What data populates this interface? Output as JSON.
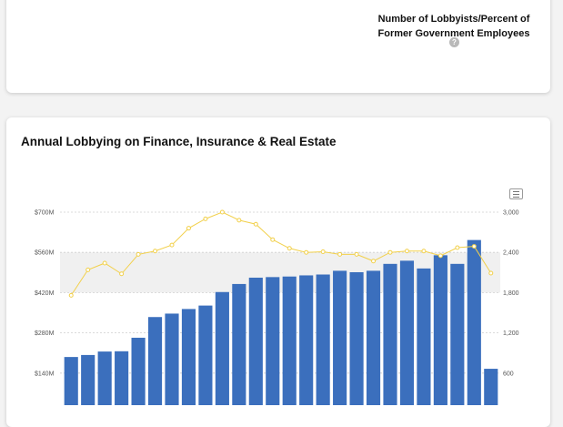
{
  "top_card": {
    "stat_label_line1": "Number of Lobbyists/Percent of",
    "stat_label_line2": "Former Government Employees",
    "help_icon": "question-icon"
  },
  "chart_card": {
    "title": "Annual Lobbying on Finance, Insurance & Real Estate",
    "menu_icon": "hamburger-menu-icon"
  },
  "chart_data": {
    "type": "bar",
    "title": "Annual Lobbying on Finance, Insurance & Real Estate",
    "y_left_ticks": [
      "$140M",
      "$280M",
      "$420M",
      "$560M",
      "$700M"
    ],
    "y_right_ticks": [
      "600",
      "1,200",
      "1,800",
      "2,400",
      "3,000"
    ],
    "ylim_left": [
      0,
      700
    ],
    "ylim_right": [
      0,
      3000
    ],
    "colors": {
      "bars": "#3b6fbd",
      "line": "#f2d04a",
      "band": "#f0f0f0"
    },
    "series": [
      {
        "type": "bar",
        "axis": "left",
        "values": [
          196,
          203,
          215,
          216,
          263,
          335,
          347,
          363,
          375,
          422,
          450,
          472,
          474,
          476,
          480,
          483,
          496,
          491,
          496,
          520,
          531,
          504,
          550,
          520,
          603,
          155
        ]
      },
      {
        "type": "line",
        "axis": "right",
        "values": [
          1760,
          2140,
          2240,
          2080,
          2370,
          2420,
          2510,
          2760,
          2900,
          3000,
          2880,
          2820,
          2590,
          2460,
          2400,
          2410,
          2370,
          2370,
          2270,
          2400,
          2420,
          2420,
          2350,
          2470,
          2490,
          2090
        ]
      }
    ]
  }
}
